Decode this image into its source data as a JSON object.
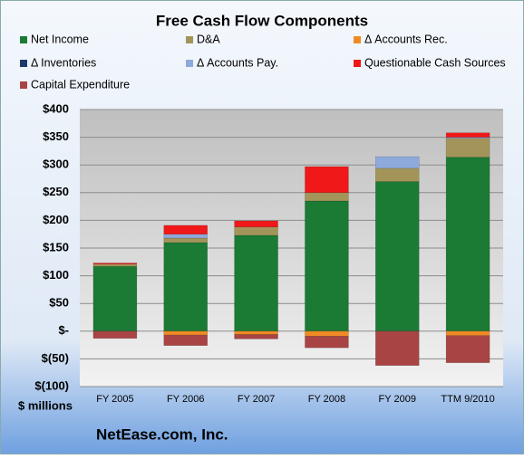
{
  "chart_data": {
    "type": "stacked_bar",
    "title": "Free Cash Flow Components",
    "ylabel": "$ millions",
    "footer": "NetEase.com, Inc.",
    "categories": [
      "FY 2005",
      "FY 2006",
      "FY 2007",
      "FY 2008",
      "FY 2009",
      "TTM 9/2010"
    ],
    "series": [
      {
        "name": "Net Income",
        "color": "#1b7a34",
        "values": [
          117,
          160,
          173,
          235,
          270,
          314
        ]
      },
      {
        "name": "D&A",
        "color": "#a3955a",
        "values": [
          4,
          8,
          15,
          15,
          24,
          34
        ]
      },
      {
        "name": "Δ Accounts Rec.",
        "color": "#f08a24",
        "values": [
          0,
          -7,
          -6,
          -9,
          0,
          -8
        ]
      },
      {
        "name": "Δ Inventories",
        "color": "#1f3a68",
        "values": [
          0,
          0,
          0,
          0,
          0,
          0
        ]
      },
      {
        "name": "Δ Accounts Pay.",
        "color": "#8eaadc",
        "values": [
          0,
          7,
          0,
          0,
          21,
          2
        ]
      },
      {
        "name": "Questionable Cash Sources",
        "color": "#f01818",
        "values": [
          2,
          16,
          11,
          47,
          0,
          8
        ]
      },
      {
        "name": "Capital Expenditure",
        "color": "#a84444",
        "values": [
          -13,
          -19,
          -8,
          -21,
          -62,
          -49
        ]
      }
    ],
    "ylim": [
      -100,
      400
    ],
    "yticks": [
      {
        "value": 400,
        "label": "$400"
      },
      {
        "value": 350,
        "label": "$350"
      },
      {
        "value": 300,
        "label": "$300"
      },
      {
        "value": 250,
        "label": "$250"
      },
      {
        "value": 200,
        "label": "$200"
      },
      {
        "value": 150,
        "label": "$150"
      },
      {
        "value": 100,
        "label": "$100"
      },
      {
        "value": 50,
        "label": "$50"
      },
      {
        "value": 0,
        "label": "$-"
      },
      {
        "value": -50,
        "label": "$(50)"
      },
      {
        "value": -100,
        "label": "$(100)"
      }
    ],
    "grid": true
  }
}
